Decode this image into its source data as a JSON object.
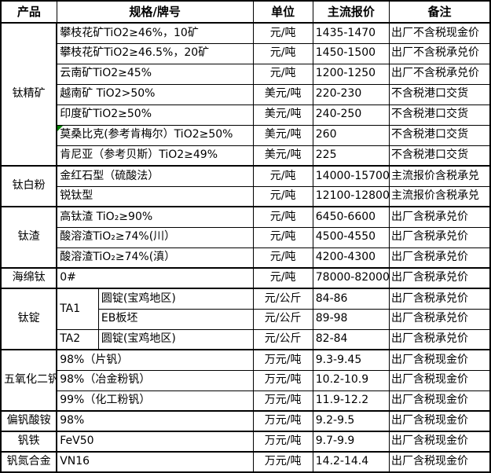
{
  "table": {
    "headers": [
      "产品",
      "规格/牌号",
      "单位",
      "主流报价",
      "备注"
    ],
    "comment_marker_color": "#008000",
    "groups": [
      {
        "product": "钛精矿",
        "rows": [
          {
            "spec": "攀枝花矿TiO2≥46%，10矿",
            "unit": "元/吨",
            "price": "1435-1470",
            "note": "出厂不含税现金价"
          },
          {
            "spec": "攀枝花矿TiO2≥46.5%，20矿",
            "unit": "元/吨",
            "price": "1450-1500",
            "note": "出厂不含税承兑价"
          },
          {
            "spec": "云南矿TiO2≥45%",
            "unit": "元/吨",
            "price": "1200-1250",
            "note": "出厂不含税承兑价"
          },
          {
            "spec": "越南矿 TiO2>50%",
            "unit": "美元/吨",
            "price": "220-230",
            "note": "不含税港口交货"
          },
          {
            "spec": "印度矿TiO2≥50%",
            "unit": "美元/吨",
            "price": "240-250",
            "note": "不含税港口交货"
          },
          {
            "spec": "莫桑比克(参考肯梅尔）TiO2≥50%",
            "unit": "美元/吨",
            "price": "260",
            "note": "不含税港口交货",
            "has_comment_marker": true
          },
          {
            "spec": "肯尼亚（参考贝斯）TiO2≥49%",
            "unit": "美元/吨",
            "price": "225",
            "note": "不含税港口交货"
          }
        ]
      },
      {
        "product": "钛白粉",
        "rows": [
          {
            "spec": "金红石型（硫酸法）",
            "unit": "元/吨",
            "price": "14000-15700",
            "note": "主流报价含税承兑"
          },
          {
            "spec": "锐钛型",
            "unit": "元/吨",
            "price": "12100-12800",
            "note": "主流报价含税承兑"
          }
        ]
      },
      {
        "product": "钛渣",
        "rows": [
          {
            "spec": "高钛渣 TiO₂≥90%",
            "unit": "元/吨",
            "price": "6450-6600",
            "note": "出厂含税承兑价"
          },
          {
            "spec": "酸溶渣TiO₂≥74%(川）",
            "unit": "元/吨",
            "price": "4500-4550",
            "note": "出厂含税承兑价"
          },
          {
            "spec": "酸溶渣TiO₂≥74%(滇）",
            "unit": "元/吨",
            "price": "4200-4300",
            "note": "出厂含税承兑价"
          }
        ]
      },
      {
        "product": "海绵钛",
        "rows": [
          {
            "spec": "0#",
            "unit": "元/吨",
            "price": "78000-82000",
            "note": "出厂含税承兑价"
          }
        ]
      },
      {
        "product": "钛锭",
        "rows": [
          {
            "grade": "TA1",
            "spec": "圆锭(宝鸡地区)",
            "unit": "元/公斤",
            "price": "84-86",
            "note": "出厂含税承兑价"
          },
          {
            "spec": "EB板坯",
            "unit": "元/公斤",
            "price": "89-98",
            "note": "出厂含税承兑价"
          },
          {
            "grade": "TA2",
            "spec": "圆锭(宝鸡地区)",
            "unit": "元/公斤",
            "price": "82-84",
            "note": "出厂含税承兑价"
          }
        ]
      },
      {
        "product": "五氧化二钒",
        "rows": [
          {
            "spec": "98%（片钒）",
            "unit": "万元/吨",
            "price": "9.3-9.45",
            "note": "出厂含税现金价"
          },
          {
            "spec": "98%（冶金粉钒）",
            "unit": "万元/吨",
            "price": "10.2-10.9",
            "note": "出厂含税现金价"
          },
          {
            "spec": "99%（化工粉钒）",
            "unit": "万元/吨",
            "price": "11.9-12.2",
            "note": "出厂含税现金价"
          }
        ]
      },
      {
        "product": "偏钒酸铵",
        "rows": [
          {
            "spec": "98%",
            "unit": "万元/吨",
            "price": "9.2-9.5",
            "note": "出厂含税现金价"
          }
        ]
      },
      {
        "product": "钒铁",
        "rows": [
          {
            "spec": "FeV50",
            "unit": "万元/吨",
            "price": "9.7-9.9",
            "note": "出厂含税现金价"
          }
        ]
      },
      {
        "product": "钒氮合金",
        "rows": [
          {
            "spec": "VN16",
            "unit": "万元/吨",
            "price": "14.2-14.4",
            "note": "出厂含税现金价"
          }
        ]
      }
    ]
  }
}
